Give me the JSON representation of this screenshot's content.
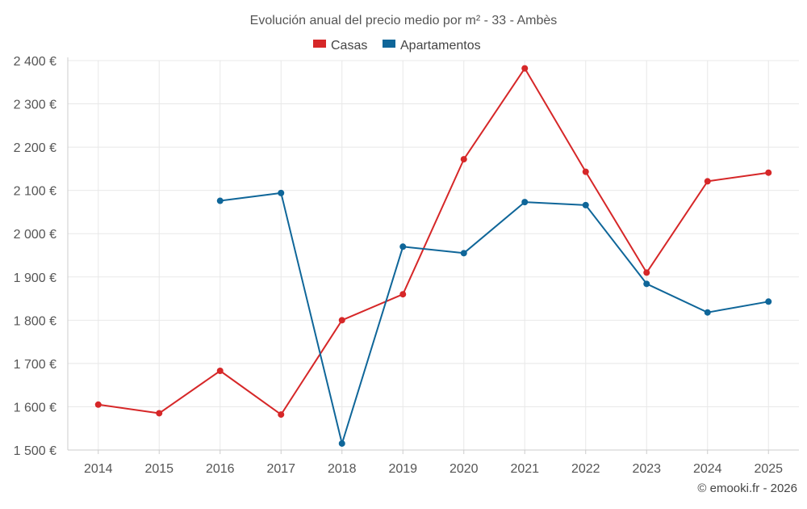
{
  "chart_data": {
    "type": "line",
    "title": "Evolución anual del precio medio por m² - 33 - Ambès",
    "categories": [
      "2014",
      "2015",
      "2016",
      "2017",
      "2018",
      "2019",
      "2020",
      "2021",
      "2022",
      "2023",
      "2024",
      "2025"
    ],
    "y_ticks": [
      1500,
      1600,
      1700,
      1800,
      1900,
      2000,
      2100,
      2200,
      2300,
      2400
    ],
    "y_tick_labels": [
      "1 500 €",
      "1 600 €",
      "1 700 €",
      "1 800 €",
      "1 900 €",
      "2 000 €",
      "2 100 €",
      "2 200 €",
      "2 300 €",
      "2 400 €"
    ],
    "ylim": [
      1500,
      2400
    ],
    "xlabel": "",
    "ylabel": "",
    "grid": true,
    "legend_position": "top-center",
    "series": [
      {
        "name": "Casas",
        "color": "#d62728",
        "values": [
          1605,
          1585,
          1683,
          1582,
          1800,
          1860,
          2172,
          2382,
          2143,
          1910,
          2121,
          2141
        ]
      },
      {
        "name": "Apartamentos",
        "color": "#0f6699",
        "values": [
          null,
          null,
          2076,
          2094,
          1515,
          1970,
          1955,
          2073,
          2066,
          1884,
          1818,
          1843
        ]
      }
    ]
  },
  "footer": {
    "credit": "© emooki.fr - 2026"
  }
}
